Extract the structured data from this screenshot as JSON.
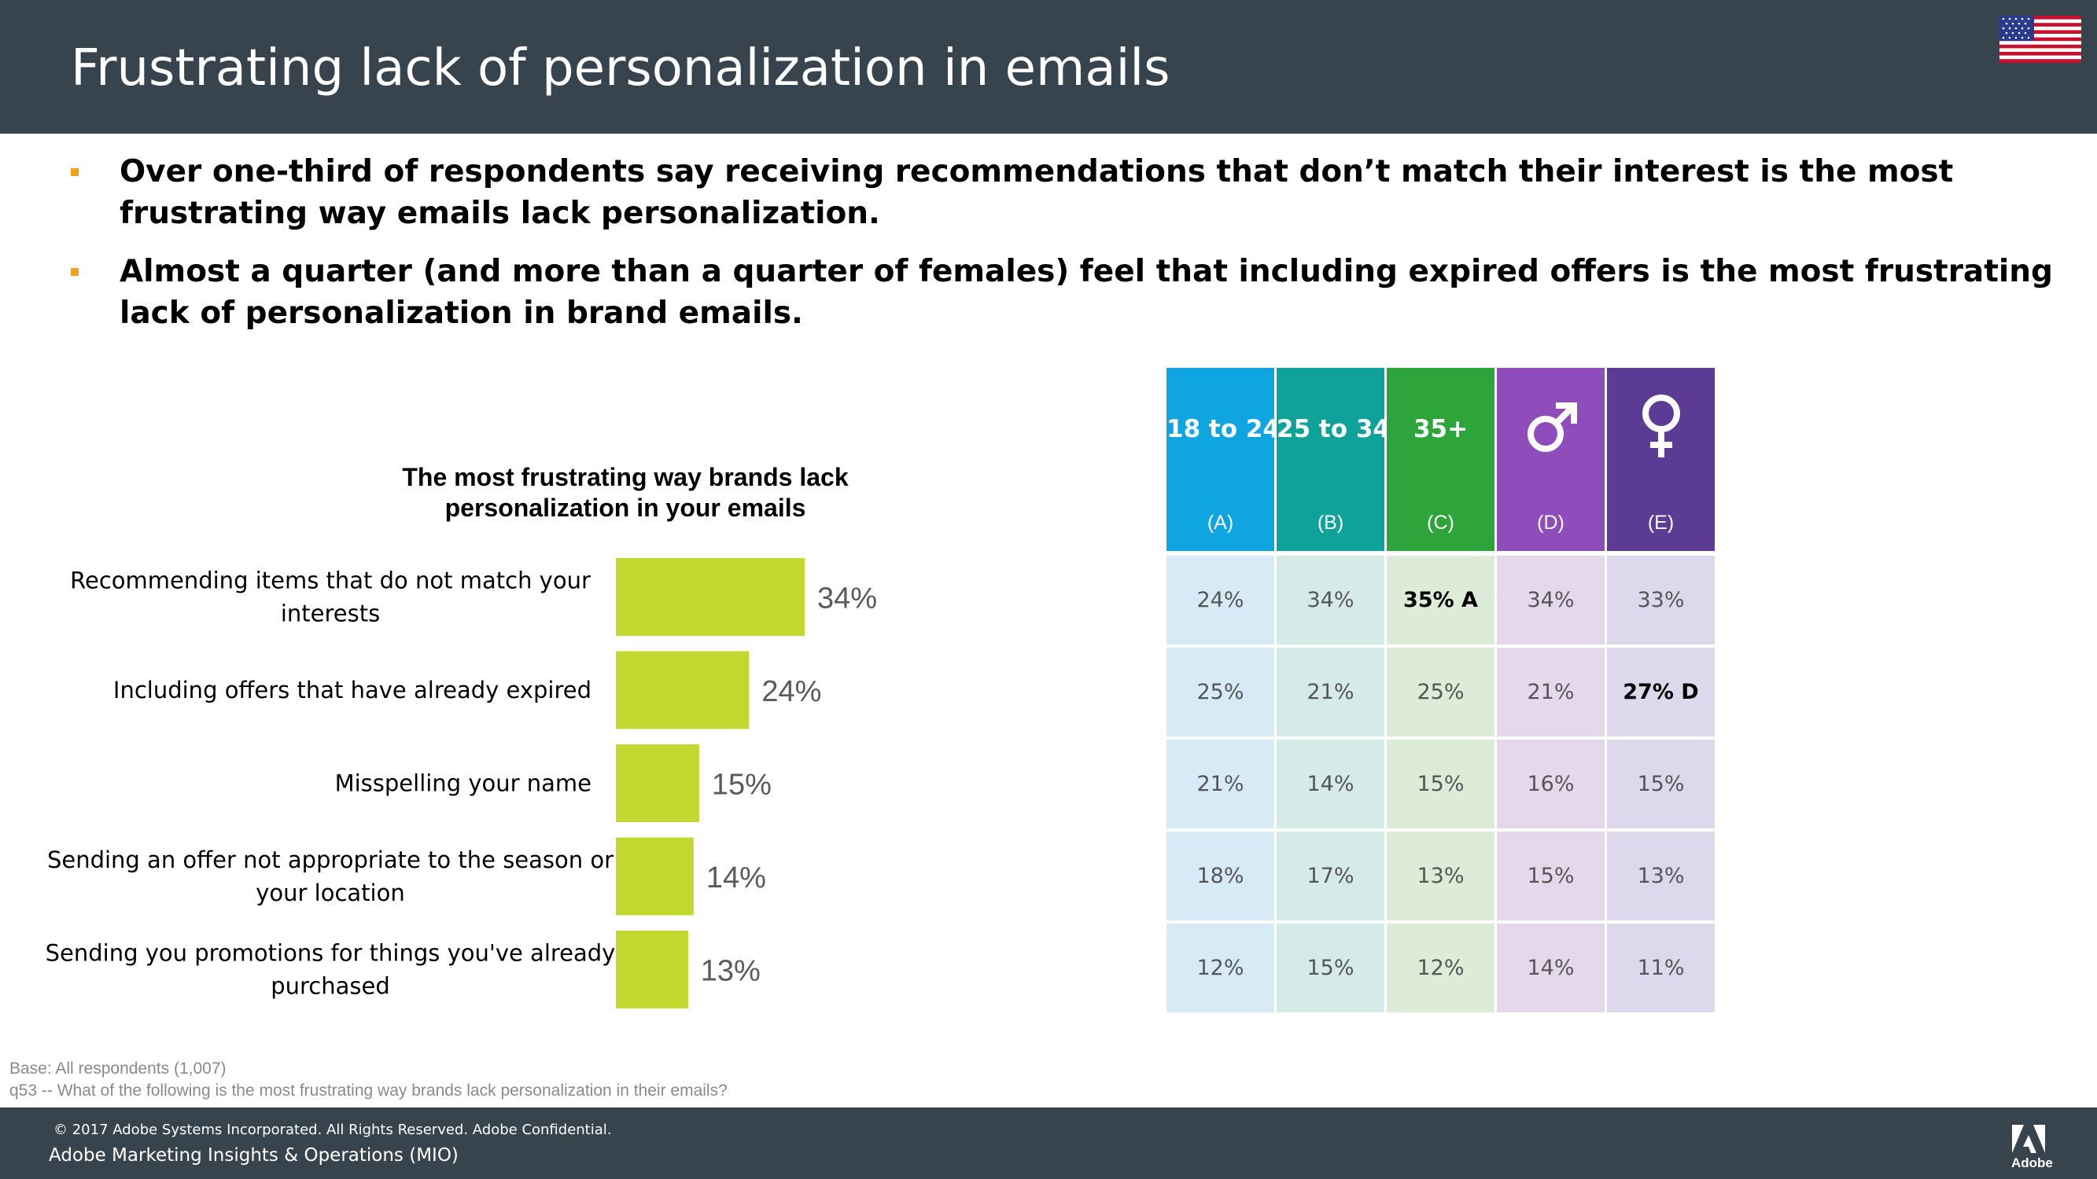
{
  "header": {
    "title": "Frustrating lack of personalization in emails"
  },
  "bullets": [
    "Over one-third of respondents say receiving recommendations that don’t match their interest is the most frustrating way emails lack personalization.",
    "Almost a quarter (and more than a quarter of females) feel that including expired offers is the most frustrating lack of personalization in brand emails."
  ],
  "colors": {
    "header_bg": "#37434d",
    "bar": "#c2d82e",
    "bullet": "#f0a31b"
  },
  "chart_data": {
    "type": "bar",
    "orientation": "horizontal",
    "title": "The most frustrating way brands lack personalization in your emails",
    "categories": [
      [
        "Recommending items that do not match your",
        "interests"
      ],
      [
        "Including offers that have already expired"
      ],
      [
        "Misspelling your name"
      ],
      [
        "Sending an offer not appropriate to the season or",
        "your location"
      ],
      [
        "Sending you promotions for things you've already",
        "purchased"
      ]
    ],
    "values": [
      34,
      24,
      15,
      14,
      13
    ],
    "value_labels": [
      "34%",
      "24%",
      "15%",
      "14%",
      "13%"
    ],
    "unit": "%",
    "xlim": [
      0,
      34
    ]
  },
  "table": {
    "columns": [
      {
        "label": "18 to 24",
        "code": "(A)",
        "icon": "",
        "header_color": "#0ea5e0",
        "cell_color": "#d7ebf6"
      },
      {
        "label": "25 to 34",
        "code": "(B)",
        "icon": "",
        "header_color": "#0fa29a",
        "cell_color": "#d5ebe8"
      },
      {
        "label": "35+",
        "code": "(C)",
        "icon": "",
        "header_color": "#2ea53a",
        "cell_color": "#dcecd6"
      },
      {
        "label": "",
        "code": "(D)",
        "icon": "male-symbol-icon",
        "header_color": "#8f4cbb",
        "cell_color": "#e6d8ec"
      },
      {
        "label": "",
        "code": "(E)",
        "icon": "female-symbol-icon",
        "header_color": "#5c3b95",
        "cell_color": "#ddd8eb"
      }
    ],
    "rows": [
      [
        "24%",
        "34%",
        "35% A",
        "34%",
        "33%"
      ],
      [
        "25%",
        "21%",
        "25%",
        "21%",
        "27% D"
      ],
      [
        "21%",
        "14%",
        "15%",
        "16%",
        "15%"
      ],
      [
        "18%",
        "17%",
        "13%",
        "15%",
        "13%"
      ],
      [
        "12%",
        "15%",
        "12%",
        "14%",
        "11%"
      ]
    ],
    "highlight": [
      [
        0,
        2
      ],
      [
        1,
        4
      ]
    ]
  },
  "footnotes": {
    "base": "Base: All respondents (1,007)",
    "question": "q53 -- What of the following is the most frustrating way brands lack personalization in their emails?"
  },
  "footer": {
    "copyright": "© 2017 Adobe Systems Incorporated.  All Rights Reserved.  Adobe Confidential.",
    "department": "Adobe Marketing Insights & Operations (MIO)",
    "logo_text": "Adobe"
  }
}
